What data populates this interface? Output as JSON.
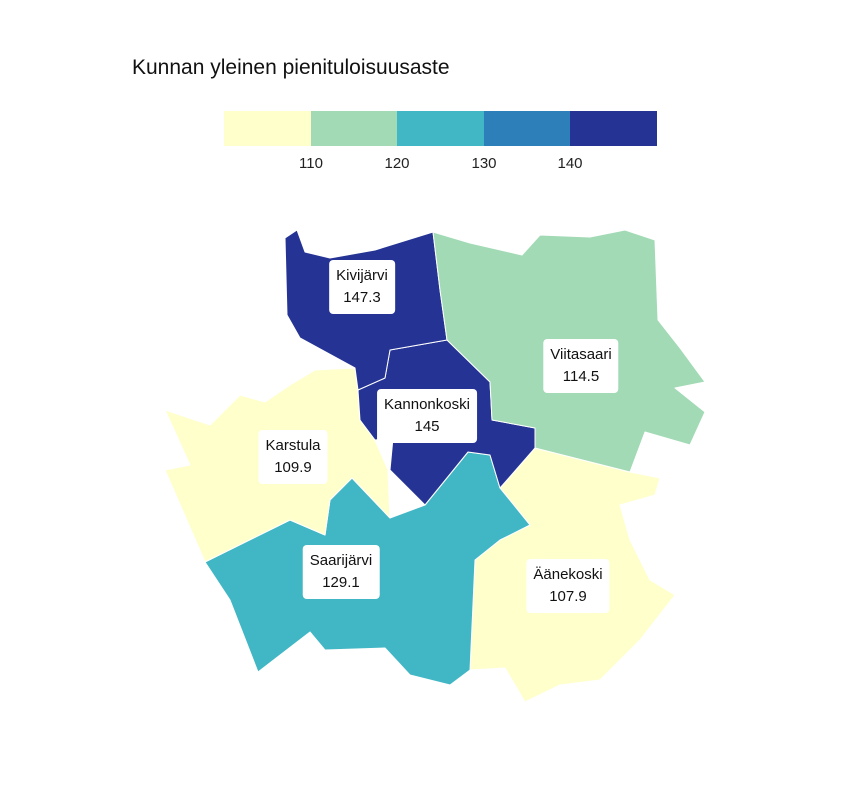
{
  "title": "Kunnan yleinen pienituloisuusaste",
  "legend": {
    "colors": [
      "#ffffcc",
      "#a1dab4",
      "#41b6c4",
      "#2c7fb8",
      "#253494"
    ],
    "ticks": [
      "110",
      "120",
      "130",
      "140"
    ]
  },
  "regions": [
    {
      "name": "Kivijärvi",
      "value": "147.3",
      "color": "#253494"
    },
    {
      "name": "Viitasaari",
      "value": "114.5",
      "color": "#a1dab4"
    },
    {
      "name": "Kannonkoski",
      "value": "145",
      "color": "#253494"
    },
    {
      "name": "Karstula",
      "value": "109.9",
      "color": "#ffffcc"
    },
    {
      "name": "Saarijärvi",
      "value": "129.1",
      "color": "#41b6c4"
    },
    {
      "name": "Äänekoski",
      "value": "107.9",
      "color": "#ffffcc"
    }
  ]
}
